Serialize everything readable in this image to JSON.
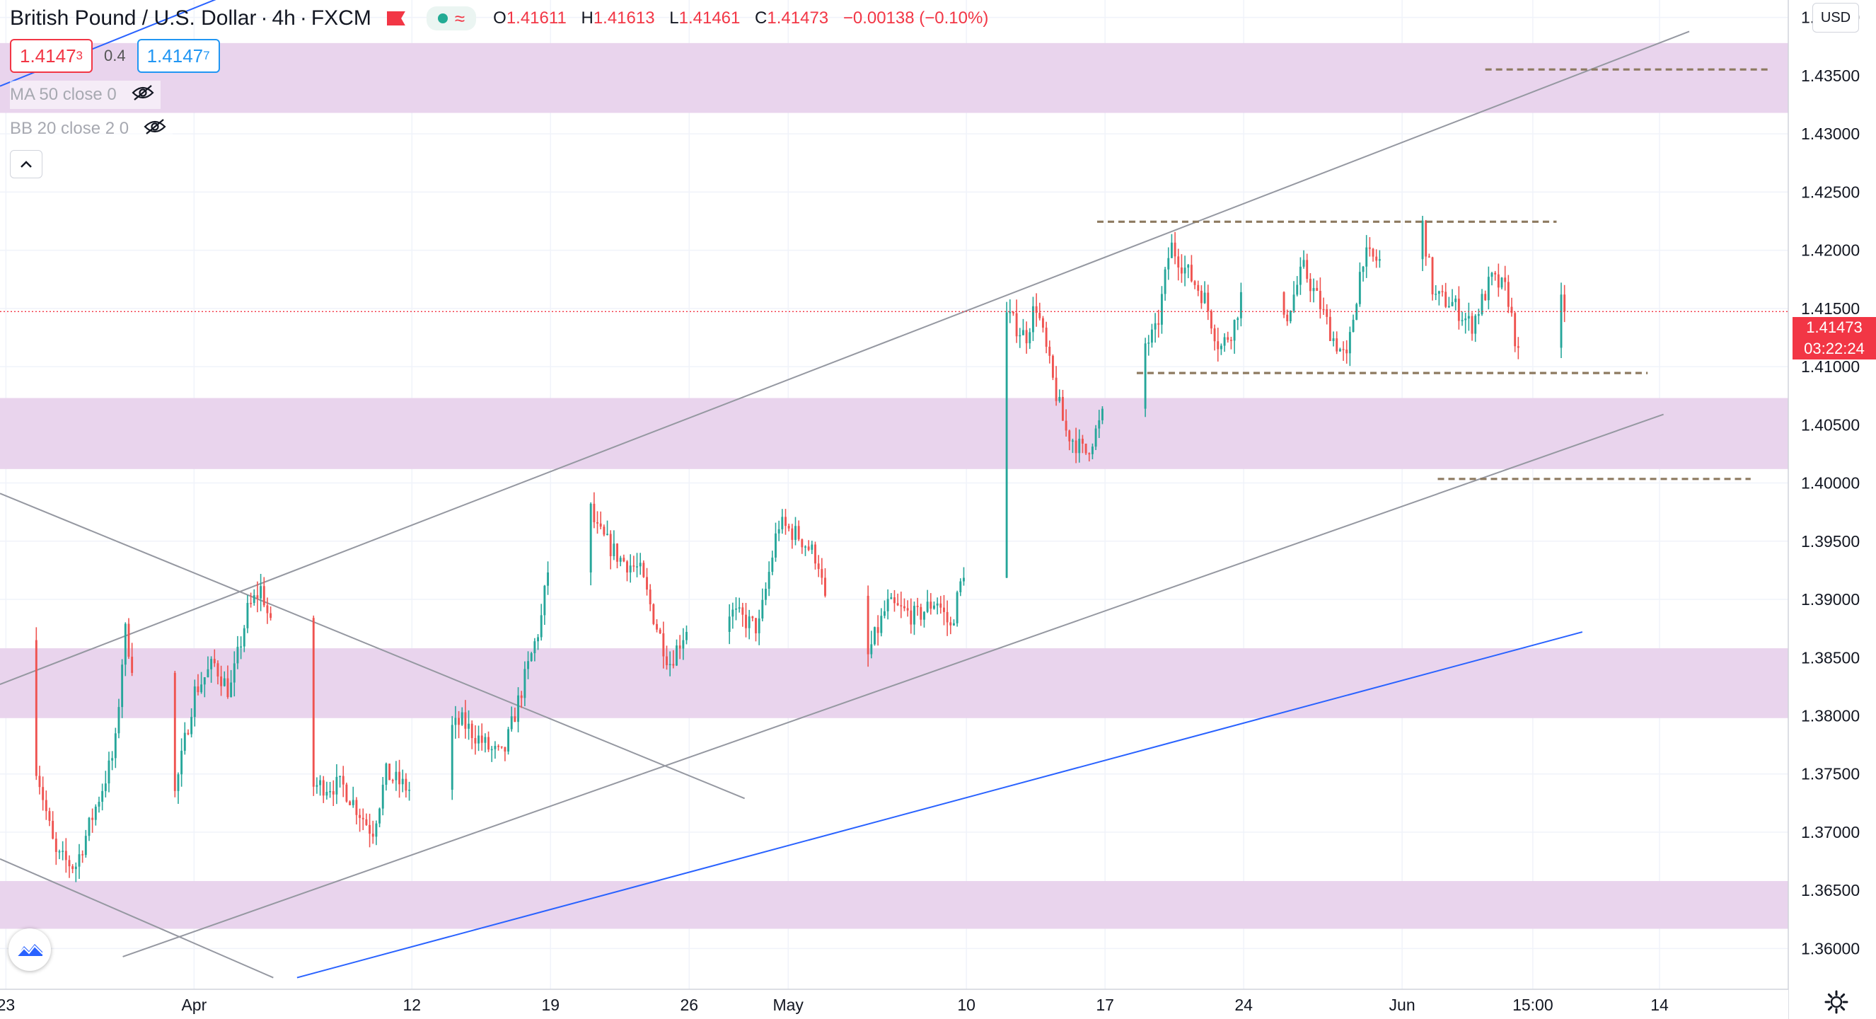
{
  "header": {
    "symbol": "British Pound / U.S. Dollar",
    "interval": "4h",
    "source": "FXCM",
    "open_label": "O",
    "open": "1.41611",
    "high_label": "H",
    "high": "1.41613",
    "low_label": "L",
    "low": "1.41461",
    "close_label": "C",
    "close": "1.41473",
    "change": "−0.00138 (−0.10%)",
    "pill_wave": "≈",
    "flag_icon": "flag-icon",
    "market_status_color": "#22ab94"
  },
  "trade": {
    "sell_main": "1.4147",
    "sell_sup": "3",
    "spread": "0.4",
    "buy_main": "1.4147",
    "buy_sup": "7"
  },
  "indicators": [
    {
      "label": "MA 50 close 0",
      "icon": "eye-hidden-icon"
    },
    {
      "label": "BB 20 close 2 0",
      "icon": "eye-hidden-icon"
    }
  ],
  "currency_button": "USD",
  "current_price": {
    "value": "1.41473",
    "countdown": "03:22:24",
    "price": 1.41473,
    "color": "#f23645"
  },
  "colors": {
    "up": "#26a69a",
    "down": "#ef5350",
    "zone": "#e9d4ed",
    "trend": "#2962ff"
  },
  "chart_data": {
    "type": "candlestick",
    "y_axis": {
      "min": 1.3565,
      "max": 1.4415,
      "ticks": [
        "1.44000",
        "1.43500",
        "1.43000",
        "1.42500",
        "1.42000",
        "1.41500",
        "1.41000",
        "1.40500",
        "1.40000",
        "1.39500",
        "1.39000",
        "1.38500",
        "1.38000",
        "1.37500",
        "1.37000",
        "1.36500",
        "1.36000"
      ],
      "tick_values": [
        1.44,
        1.435,
        1.43,
        1.425,
        1.42,
        1.415,
        1.41,
        1.405,
        1.4,
        1.395,
        1.39,
        1.385,
        1.38,
        1.375,
        1.37,
        1.365,
        1.36
      ]
    },
    "x_axis": {
      "labels": [
        {
          "text": "23",
          "day": -8.5
        },
        {
          "text": "Apr",
          "day": 1
        },
        {
          "text": "12",
          "day": 12
        },
        {
          "text": "19",
          "day": 19
        },
        {
          "text": "26",
          "day": 26
        },
        {
          "text": "May",
          "day": 31
        },
        {
          "text": "10",
          "day": 40
        },
        {
          "text": "17",
          "day": 47
        },
        {
          "text": "24",
          "day": 54
        },
        {
          "text": "Jun",
          "day": 62
        },
        {
          "text": "15:00",
          "day": 68.6
        },
        {
          "text": "14",
          "day": 75
        }
      ],
      "day_range": [
        -8.8,
        81.5
      ]
    },
    "key_points": [
      {
        "day": -8.8,
        "price": 1.3865
      },
      {
        "day": -7.5,
        "price": 1.38
      },
      {
        "day": -6,
        "price": 1.368
      },
      {
        "day": -5,
        "price": 1.367
      },
      {
        "day": -3,
        "price": 1.377
      },
      {
        "day": -2.5,
        "price": 1.3875
      },
      {
        "day": -1,
        "price": 1.375
      },
      {
        "day": 0,
        "price": 1.373
      },
      {
        "day": 1,
        "price": 1.382
      },
      {
        "day": 2,
        "price": 1.3845
      },
      {
        "day": 2.8,
        "price": 1.382
      },
      {
        "day": 3.7,
        "price": 1.389
      },
      {
        "day": 4.4,
        "price": 1.391
      },
      {
        "day": 5.5,
        "price": 1.383
      },
      {
        "day": 6.5,
        "price": 1.374
      },
      {
        "day": 8.5,
        "price": 1.374
      },
      {
        "day": 10,
        "price": 1.37
      },
      {
        "day": 10.7,
        "price": 1.375
      },
      {
        "day": 12,
        "price": 1.3735
      },
      {
        "day": 13.3,
        "price": 1.378
      },
      {
        "day": 14.5,
        "price": 1.3795
      },
      {
        "day": 16,
        "price": 1.377
      },
      {
        "day": 16.6,
        "price": 1.3765
      },
      {
        "day": 17.5,
        "price": 1.382
      },
      {
        "day": 18.5,
        "price": 1.388
      },
      {
        "day": 19.4,
        "price": 1.399
      },
      {
        "day": 20.5,
        "price": 1.401
      },
      {
        "day": 21.3,
        "price": 1.396
      },
      {
        "day": 22.5,
        "price": 1.3935
      },
      {
        "day": 23.5,
        "price": 1.3925
      },
      {
        "day": 24.3,
        "price": 1.388
      },
      {
        "day": 25,
        "price": 1.3845
      },
      {
        "day": 26,
        "price": 1.388
      },
      {
        "day": 26.8,
        "price": 1.39
      },
      {
        "day": 28,
        "price": 1.389
      },
      {
        "day": 29.5,
        "price": 1.3875
      },
      {
        "day": 30.5,
        "price": 1.3965
      },
      {
        "day": 31.5,
        "price": 1.3955
      },
      {
        "day": 32.5,
        "price": 1.3935
      },
      {
        "day": 33.5,
        "price": 1.383
      },
      {
        "day": 34.4,
        "price": 1.3815
      },
      {
        "day": 35.2,
        "price": 1.386
      },
      {
        "day": 36,
        "price": 1.3895
      },
      {
        "day": 37.5,
        "price": 1.3885
      },
      {
        "day": 38.5,
        "price": 1.39
      },
      {
        "day": 39.2,
        "price": 1.3875
      },
      {
        "day": 40,
        "price": 1.3935
      },
      {
        "day": 40.7,
        "price": 1.402
      },
      {
        "day": 41.3,
        "price": 1.4095
      },
      {
        "day": 42,
        "price": 1.4145
      },
      {
        "day": 43,
        "price": 1.4125
      },
      {
        "day": 43.5,
        "price": 1.4155
      },
      {
        "day": 44.4,
        "price": 1.4085
      },
      {
        "day": 45,
        "price": 1.4045
      },
      {
        "day": 46,
        "price": 1.4025
      },
      {
        "day": 46.7,
        "price": 1.405
      },
      {
        "day": 47.5,
        "price": 1.4085
      },
      {
        "day": 48.3,
        "price": 1.4105
      },
      {
        "day": 49.6,
        "price": 1.413
      },
      {
        "day": 50.3,
        "price": 1.4205
      },
      {
        "day": 51,
        "price": 1.4185
      },
      {
        "day": 52,
        "price": 1.416
      },
      {
        "day": 52.8,
        "price": 1.4115
      },
      {
        "day": 53.5,
        "price": 1.4135
      },
      {
        "day": 54.5,
        "price": 1.4205
      },
      {
        "day": 55.2,
        "price": 1.4145
      },
      {
        "day": 56,
        "price": 1.4135
      },
      {
        "day": 57,
        "price": 1.4185
      },
      {
        "day": 57.8,
        "price": 1.4155
      },
      {
        "day": 58.5,
        "price": 1.4125
      },
      {
        "day": 59.2,
        "price": 1.4105
      },
      {
        "day": 60,
        "price": 1.4195
      },
      {
        "day": 61,
        "price": 1.419
      },
      {
        "day": 62,
        "price": 1.4185
      },
      {
        "day": 62.4,
        "price": 1.4195
      },
      {
        "day": 63,
        "price": 1.4225
      },
      {
        "day": 63.6,
        "price": 1.416
      },
      {
        "day": 64.5,
        "price": 1.4155
      },
      {
        "day": 65.5,
        "price": 1.4135
      },
      {
        "day": 66.5,
        "price": 1.4175
      },
      {
        "day": 67.3,
        "price": 1.4165
      },
      {
        "day": 68,
        "price": 1.4095
      },
      {
        "day": 68.6,
        "price": 1.4105
      },
      {
        "day": 69.2,
        "price": 1.4185
      },
      {
        "day": 69.8,
        "price": 1.4165
      },
      {
        "day": 70.2,
        "price": 1.4147
      }
    ],
    "zones": [
      {
        "from": 1.4318,
        "to": 1.4378
      },
      {
        "from": 1.4012,
        "to": 1.4073
      },
      {
        "from": 1.3798,
        "to": 1.3858
      },
      {
        "from": 1.3617,
        "to": 1.3658
      }
    ],
    "horizontal_levels": [
      {
        "price": 1.43553,
        "from_day": 66.2,
        "to_day": 80.6
      },
      {
        "price": 1.42245,
        "from_day": 46.6,
        "to_day": 69.8
      },
      {
        "price": 1.40945,
        "from_day": 48.6,
        "to_day": 74.4
      },
      {
        "price": 1.40035,
        "from_day": 63.8,
        "to_day": 79.6
      }
    ],
    "trend_lines": [
      {
        "kind": "channel",
        "color": "#9598a1",
        "from": [
          -8.8,
          1.3827
        ],
        "to": [
          76.5,
          1.4388
        ]
      },
      {
        "kind": "channel",
        "color": "#9598a1",
        "from": [
          -2.6,
          1.3593
        ],
        "to": [
          75.2,
          1.4059
        ]
      },
      {
        "kind": "falling",
        "color": "#9598a1",
        "from": [
          -8.8,
          1.3991
        ],
        "to": [
          28.8,
          1.3729
        ]
      },
      {
        "kind": "falling",
        "color": "#9598a1",
        "from": [
          -8.8,
          1.3677
        ],
        "to": [
          5.0,
          1.3575
        ]
      },
      {
        "kind": "trend",
        "color": "#2962ff",
        "from": [
          6.2,
          1.3575
        ],
        "to": [
          71.1,
          1.3872
        ]
      },
      {
        "kind": "trend",
        "color": "#2962ff",
        "from": [
          -8.8,
          1.4341
        ],
        "to": [
          12.4,
          1.4486
        ]
      }
    ]
  }
}
